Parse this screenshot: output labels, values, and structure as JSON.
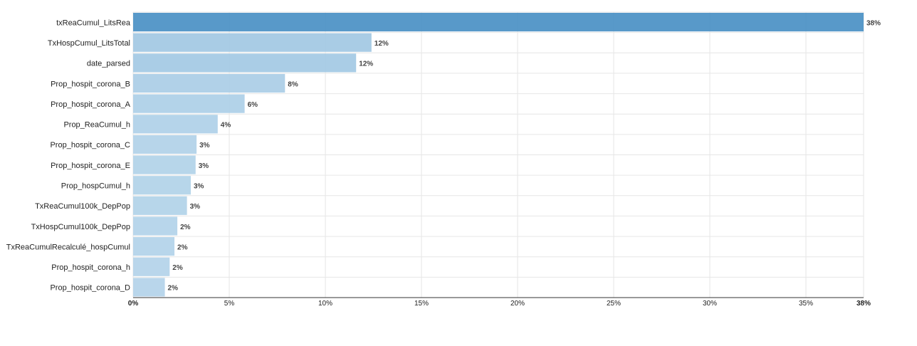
{
  "chart_data": {
    "type": "bar",
    "orientation": "horizontal",
    "title": "",
    "xlabel": "",
    "ylabel": "",
    "xlim": [
      0,
      38
    ],
    "grid": true,
    "x_ticks": [
      "0%",
      "5%",
      "10%",
      "15%",
      "20%",
      "25%",
      "30%",
      "35%",
      "38%"
    ],
    "x_tick_values": [
      0,
      5,
      10,
      15,
      20,
      25,
      30,
      35,
      38
    ],
    "categories": [
      "txReaCumul_LitsRea",
      "TxHospCumul_LitsTotal",
      "date_parsed",
      "Prop_hospit_corona_B",
      "Prop_hospit_corona_A",
      "Prop_ReaCumul_h",
      "Prop_hospit_corona_C",
      "Prop_hospit_corona_E",
      "Prop_hospCumul_h",
      "TxReaCumul100k_DepPop",
      "TxHospCumul100k_DepPop",
      "TxReaCumulRecalculé_hospCumul",
      "Prop_hospit_corona_h",
      "Prop_hospit_corona_D"
    ],
    "values": [
      38,
      12.4,
      11.6,
      7.9,
      5.8,
      4.4,
      3.3,
      3.25,
      3.0,
      2.8,
      2.3,
      2.15,
      1.9,
      1.65
    ],
    "value_labels": [
      "38%",
      "12%",
      "12%",
      "8%",
      "6%",
      "4%",
      "3%",
      "3%",
      "3%",
      "3%",
      "2%",
      "2%",
      "2%",
      "2%"
    ],
    "colors": {
      "bar_dark": "#4a90c4",
      "bar_light": "#b3d3e9",
      "grid": "#e6e6e6",
      "axis": "#333333"
    }
  }
}
